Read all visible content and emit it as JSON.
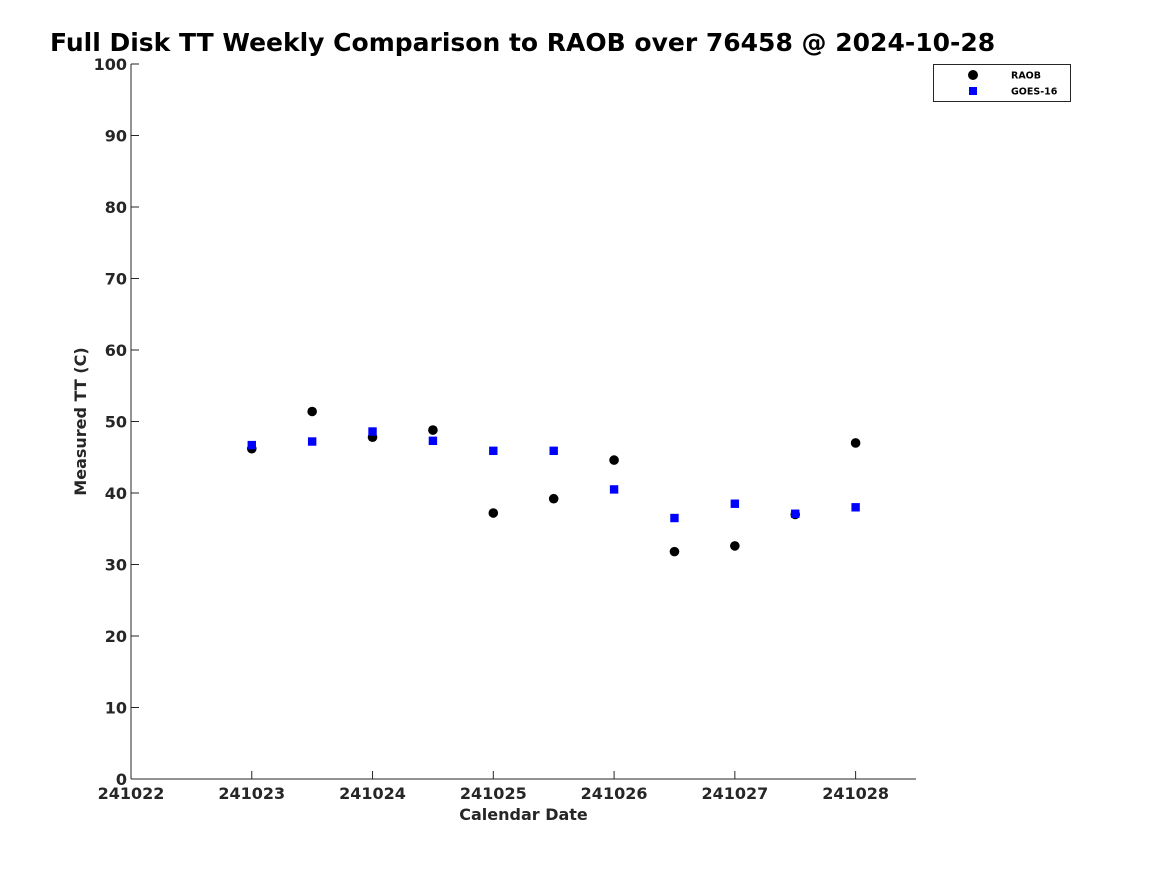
{
  "chart_data": {
    "type": "scatter",
    "title": "Full Disk TT Weekly Comparison to RAOB over 76458 @ 2024-10-28",
    "xlabel": "Calendar Date",
    "ylabel": "Measured TT (C)",
    "xlim": [
      241022,
      241028.5
    ],
    "ylim": [
      0,
      100
    ],
    "x_ticks": [
      241022,
      241023,
      241024,
      241025,
      241026,
      241027,
      241028
    ],
    "y_ticks": [
      0,
      10,
      20,
      30,
      40,
      50,
      60,
      70,
      80,
      90,
      100
    ],
    "legend_position": "top-right",
    "series": [
      {
        "name": "RAOB",
        "marker": "circle",
        "color": "#000000",
        "x": [
          241023,
          241023.5,
          241024,
          241024.5,
          241025,
          241025.5,
          241026,
          241026.5,
          241027,
          241027.5,
          241028
        ],
        "y": [
          46.2,
          51.4,
          47.8,
          48.8,
          37.2,
          39.2,
          44.6,
          31.8,
          32.6,
          37.0,
          47.0
        ]
      },
      {
        "name": "GOES-16",
        "marker": "square",
        "color": "#0000ff",
        "x": [
          241023,
          241023.5,
          241024,
          241024.5,
          241025,
          241025.5,
          241026,
          241026.5,
          241027,
          241027.5,
          241028
        ],
        "y": [
          46.7,
          47.2,
          48.6,
          47.3,
          45.9,
          45.9,
          40.5,
          36.5,
          38.5,
          37.1,
          38.0
        ]
      }
    ]
  }
}
